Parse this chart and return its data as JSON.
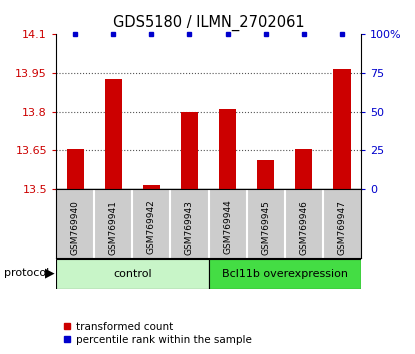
{
  "title": "GDS5180 / ILMN_2702061",
  "samples": [
    "GSM769940",
    "GSM769941",
    "GSM769942",
    "GSM769943",
    "GSM769944",
    "GSM769945",
    "GSM769946",
    "GSM769947"
  ],
  "red_values": [
    13.655,
    13.925,
    13.515,
    13.8,
    13.81,
    13.615,
    13.655,
    13.965
  ],
  "blue_values": [
    100,
    100,
    100,
    100,
    100,
    100,
    100,
    100
  ],
  "ylim_left": [
    13.5,
    14.1
  ],
  "ylim_right": [
    0,
    100
  ],
  "yticks_left": [
    13.5,
    13.65,
    13.8,
    13.95,
    14.1
  ],
  "yticks_right": [
    0,
    25,
    50,
    75,
    100
  ],
  "ytick_labels_right": [
    "0",
    "25",
    "50",
    "75",
    "100%"
  ],
  "groups": [
    {
      "label": "control",
      "start": 0,
      "end": 4,
      "color": "#c8f5c8"
    },
    {
      "label": "Bcl11b overexpression",
      "start": 4,
      "end": 8,
      "color": "#44dd44"
    }
  ],
  "protocol_label": "protocol",
  "legend_red": "transformed count",
  "legend_blue": "percentile rank within the sample",
  "red_color": "#cc0000",
  "blue_color": "#0000cc",
  "bar_width": 0.45,
  "dotted_line_color": "#555555",
  "bg_color": "#ffffff",
  "bar_area_bg": "#ffffff",
  "sample_label_bg": "#cccccc",
  "title_fontsize": 10.5,
  "tick_fontsize": 8,
  "sample_fontsize": 6.5,
  "label_fontsize": 8
}
